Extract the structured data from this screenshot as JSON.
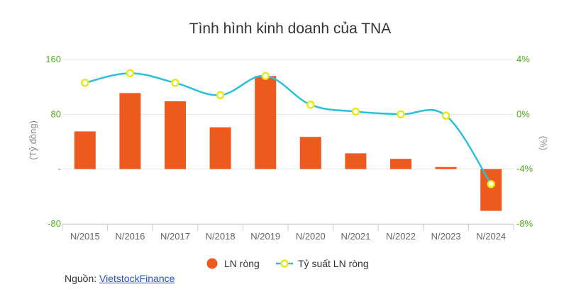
{
  "chart_data": {
    "type": "bar",
    "title": "Tình hình kinh doanh của TNA",
    "categories": [
      "N/2015",
      "N/2016",
      "N/2017",
      "N/2018",
      "N/2019",
      "N/2020",
      "N/2021",
      "N/2022",
      "N/2023",
      "N/2024"
    ],
    "series": [
      {
        "name": "LN ròng",
        "type": "bar",
        "axis": "left",
        "color": "#ee5a1e",
        "values": [
          55,
          111,
          99,
          61,
          136,
          47,
          23,
          15,
          3,
          -61
        ]
      },
      {
        "name": "Tỷ suất LN ròng",
        "type": "line",
        "axis": "right",
        "color": "#29c1d9",
        "marker_color": "#e8e81a",
        "values": [
          2.3,
          3.0,
          2.3,
          1.4,
          2.8,
          0.7,
          0.2,
          0.0,
          -0.1,
          -5.1
        ]
      }
    ],
    "ylabel": "(Tỷ đồng)",
    "y2label": "(%)",
    "ylim": [
      -80,
      160
    ],
    "y2lim": [
      -8,
      4
    ],
    "yticks": [
      "160",
      "80",
      "-",
      "-80"
    ],
    "y2ticks": [
      "4%",
      "0%",
      "-4%",
      "-8%"
    ],
    "grid": true,
    "legend_position": "bottom"
  },
  "source": {
    "label": "Nguồn:",
    "link_text": "VietstockFinance"
  }
}
